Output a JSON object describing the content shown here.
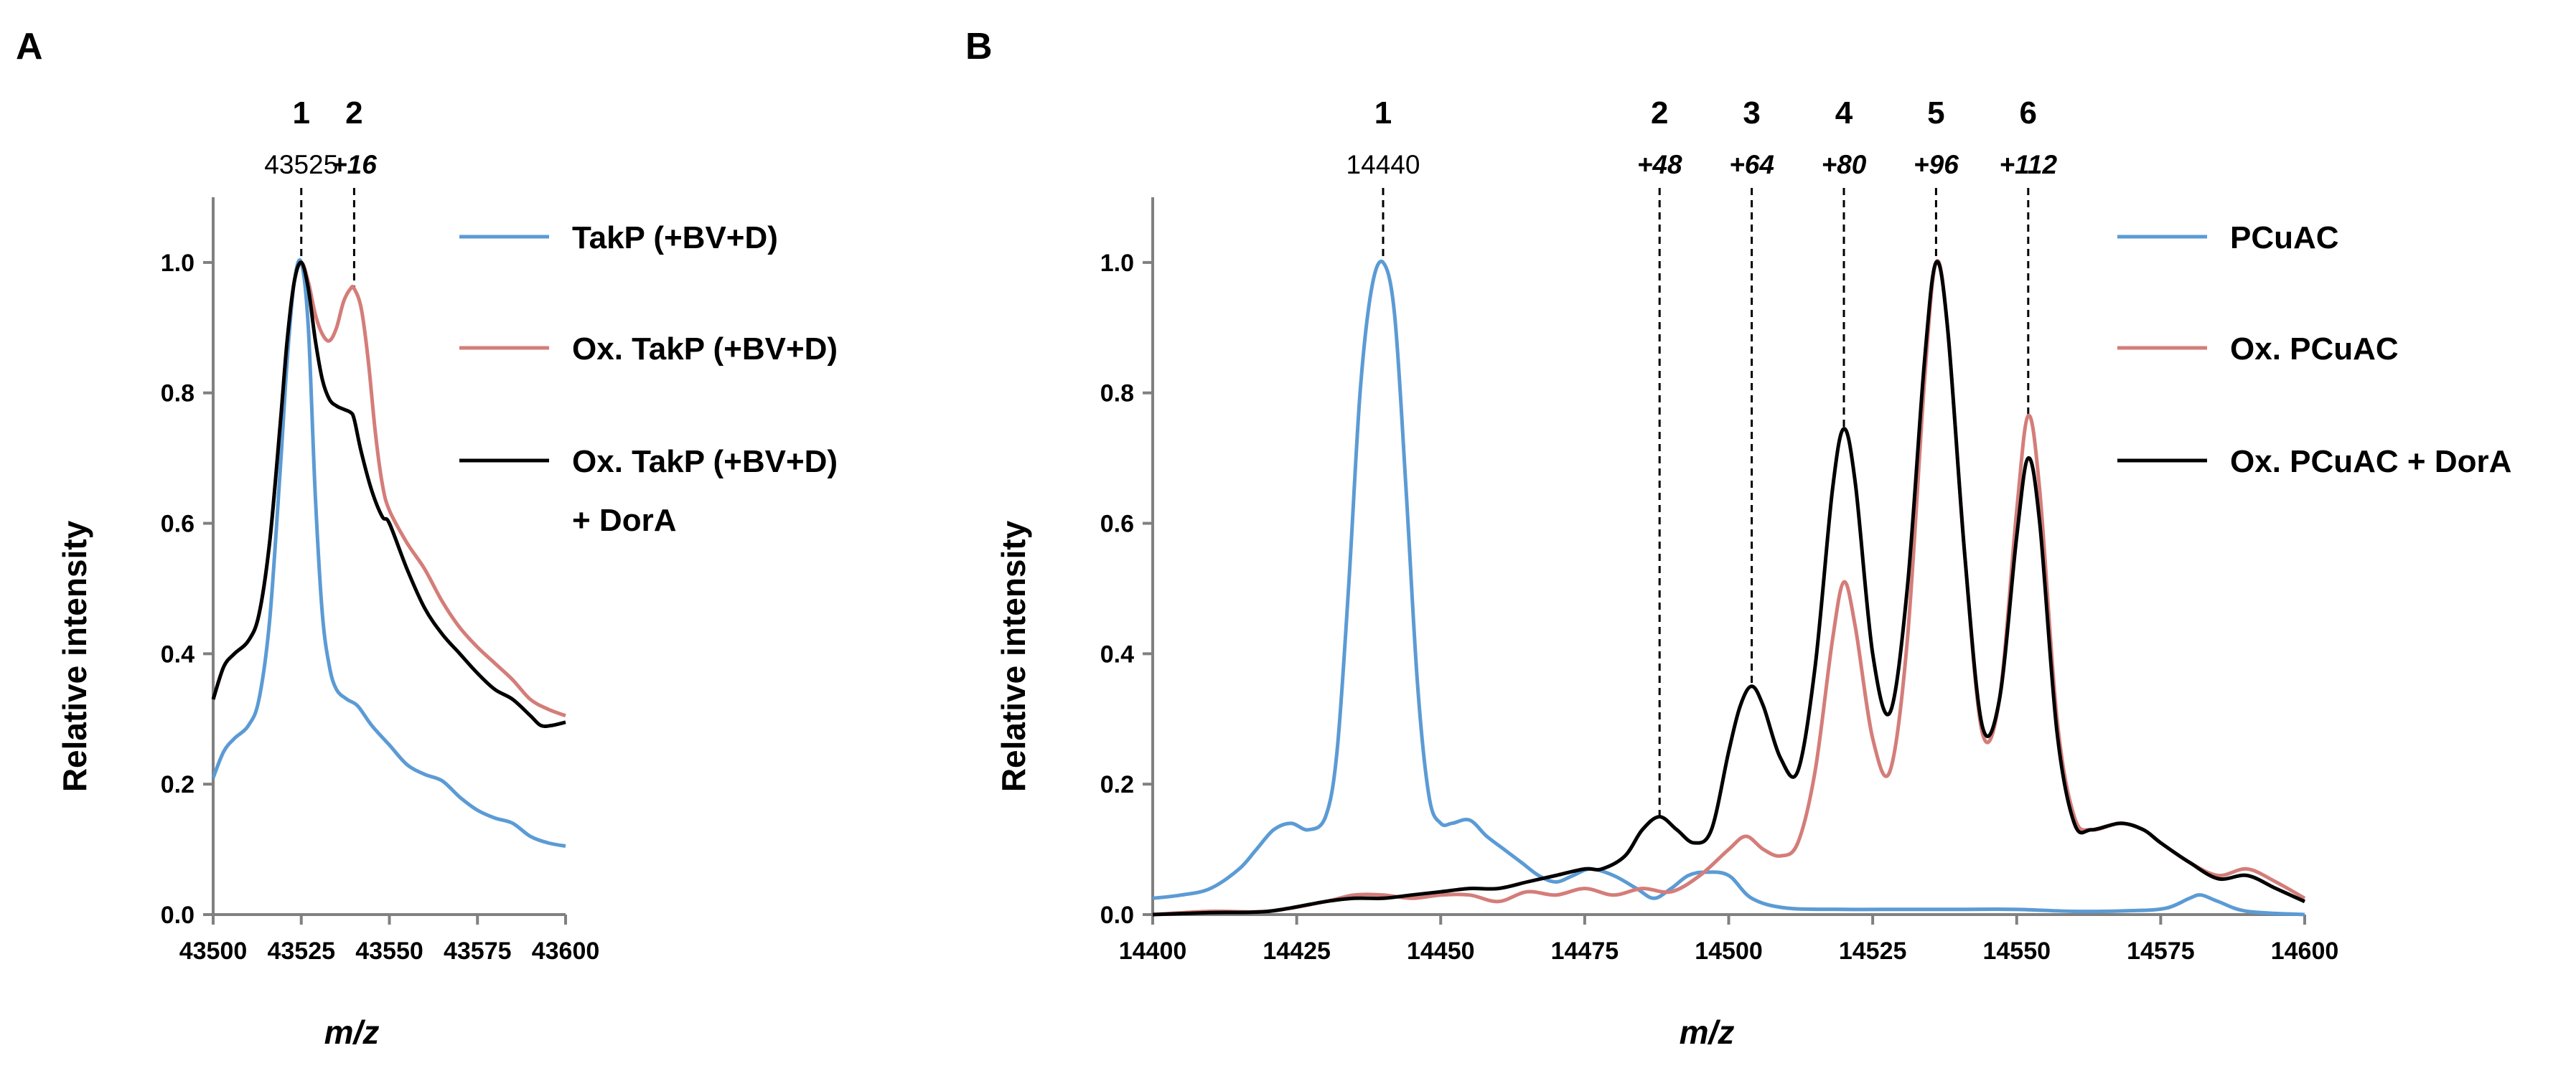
{
  "chart_data": [
    {
      "panel": "A",
      "type": "line",
      "xlabel": "m/z",
      "ylabel": "Relative intensity",
      "xlim": [
        43500,
        43600
      ],
      "ylim": [
        0,
        1.1
      ],
      "xticks": [
        43500,
        43525,
        43550,
        43575,
        43600
      ],
      "yticks": [
        "0.0",
        "0.2",
        "0.4",
        "0.6",
        "0.8",
        "1.0"
      ],
      "peaks": [
        {
          "num": "1",
          "mass": "43525",
          "x": 43525,
          "italic": false,
          "top": 1.0
        },
        {
          "num": "2",
          "mass": "+16",
          "x": 43540,
          "italic": true,
          "top": 0.96
        }
      ],
      "series": [
        {
          "name": "TakP (+BV+D)",
          "color": "#5B9BD5",
          "x": [
            43500,
            43503,
            43506,
            43510,
            43513,
            43516,
            43519,
            43521,
            43523,
            43525,
            43527,
            43529,
            43531,
            43533,
            43535,
            43538,
            43541,
            43545,
            43550,
            43555,
            43560,
            43565,
            43570,
            43575,
            43580,
            43585,
            43590,
            43595,
            43600
          ],
          "y": [
            0.21,
            0.25,
            0.27,
            0.29,
            0.33,
            0.45,
            0.68,
            0.85,
            0.97,
            1.0,
            0.9,
            0.64,
            0.46,
            0.38,
            0.345,
            0.33,
            0.32,
            0.29,
            0.26,
            0.23,
            0.215,
            0.205,
            0.18,
            0.16,
            0.148,
            0.14,
            0.12,
            0.11,
            0.105
          ]
        },
        {
          "name": "Ox. TakP (+BV+D)",
          "color": "#D47D79",
          "x": [
            43500,
            43503,
            43506,
            43510,
            43513,
            43516,
            43519,
            43521,
            43523,
            43525,
            43527,
            43529,
            43531,
            43533,
            43535,
            43537,
            43539,
            43540,
            43542,
            43544,
            43546,
            43548,
            43550,
            43555,
            43560,
            43565,
            43570,
            43575,
            43580,
            43585,
            43590,
            43595,
            43600
          ],
          "y": [
            0.33,
            0.38,
            0.4,
            0.42,
            0.46,
            0.57,
            0.75,
            0.88,
            0.97,
            1.0,
            0.97,
            0.92,
            0.89,
            0.88,
            0.9,
            0.94,
            0.96,
            0.96,
            0.93,
            0.85,
            0.74,
            0.66,
            0.62,
            0.57,
            0.53,
            0.48,
            0.44,
            0.41,
            0.385,
            0.36,
            0.33,
            0.315,
            0.305
          ]
        },
        {
          "name": "Ox. TakP (+BV+D) + DorA",
          "color": "#000000",
          "x": [
            43500,
            43503,
            43506,
            43510,
            43513,
            43516,
            43519,
            43521,
            43523,
            43525,
            43527,
            43529,
            43531,
            43533,
            43535,
            43537,
            43539,
            43540,
            43542,
            43545,
            43548,
            43550,
            43555,
            43560,
            43565,
            43570,
            43575,
            43580,
            43585,
            43590,
            43593,
            43596,
            43600
          ],
          "y": [
            0.33,
            0.38,
            0.4,
            0.42,
            0.46,
            0.57,
            0.75,
            0.88,
            0.97,
            1.0,
            0.96,
            0.88,
            0.82,
            0.79,
            0.78,
            0.775,
            0.77,
            0.76,
            0.71,
            0.65,
            0.61,
            0.6,
            0.53,
            0.47,
            0.43,
            0.4,
            0.37,
            0.345,
            0.33,
            0.305,
            0.29,
            0.29,
            0.295
          ]
        }
      ]
    },
    {
      "panel": "B",
      "type": "line",
      "xlabel": "m/z",
      "ylabel": "Relative intensity",
      "xlim": [
        14400,
        14600
      ],
      "ylim": [
        0,
        1.1
      ],
      "xticks": [
        14400,
        14425,
        14450,
        14475,
        14500,
        14525,
        14550,
        14575,
        14600
      ],
      "yticks": [
        "0.0",
        "0.2",
        "0.4",
        "0.6",
        "0.8",
        "1.0"
      ],
      "peaks": [
        {
          "num": "1",
          "mass": "14440",
          "x": 14440,
          "italic": false,
          "top": 1.0
        },
        {
          "num": "2",
          "mass": "+48",
          "x": 14488,
          "italic": true,
          "top": 0.15
        },
        {
          "num": "3",
          "mass": "+64",
          "x": 14504,
          "italic": true,
          "top": 0.35
        },
        {
          "num": "4",
          "mass": "+80",
          "x": 14520,
          "italic": true,
          "top": 0.745
        },
        {
          "num": "5",
          "mass": "+96",
          "x": 14536,
          "italic": true,
          "top": 1.0
        },
        {
          "num": "6",
          "mass": "+112",
          "x": 14552,
          "italic": true,
          "top": 0.765
        }
      ],
      "series": [
        {
          "name": "PCuAC",
          "color": "#5B9BD5",
          "x": [
            14400,
            14405,
            14410,
            14415,
            14418,
            14421,
            14424,
            14427,
            14430,
            14432,
            14434,
            14436,
            14438,
            14440,
            14442,
            14444,
            14446,
            14448,
            14450,
            14452,
            14455,
            14458,
            14461,
            14464,
            14467,
            14470,
            14473,
            14476,
            14480,
            14484,
            14487,
            14490,
            14493,
            14496,
            14500,
            14504,
            14510,
            14520,
            14530,
            14540,
            14550,
            14560,
            14570,
            14576,
            14580,
            14582,
            14585,
            14590,
            14600
          ],
          "y": [
            0.025,
            0.03,
            0.04,
            0.07,
            0.1,
            0.13,
            0.14,
            0.13,
            0.15,
            0.25,
            0.5,
            0.8,
            0.96,
            1.0,
            0.92,
            0.65,
            0.35,
            0.18,
            0.14,
            0.14,
            0.145,
            0.12,
            0.1,
            0.08,
            0.06,
            0.05,
            0.06,
            0.07,
            0.06,
            0.04,
            0.025,
            0.04,
            0.06,
            0.065,
            0.06,
            0.025,
            0.01,
            0.008,
            0.008,
            0.008,
            0.008,
            0.005,
            0.006,
            0.01,
            0.025,
            0.03,
            0.02,
            0.005,
            0.0
          ]
        },
        {
          "name": "Ox. PCuAC",
          "color": "#D47D79",
          "x": [
            14400,
            14410,
            14420,
            14430,
            14435,
            14440,
            14445,
            14450,
            14455,
            14460,
            14465,
            14470,
            14475,
            14480,
            14485,
            14490,
            14495,
            14500,
            14503,
            14506,
            14509,
            14512,
            14515,
            14518,
            14520,
            14522,
            14525,
            14528,
            14531,
            14534,
            14536,
            14538,
            14541,
            14544,
            14547,
            14550,
            14552,
            14554,
            14557,
            14560,
            14563,
            14568,
            14572,
            14575,
            14580,
            14585,
            14590,
            14595,
            14600
          ],
          "y": [
            0.0,
            0.005,
            0.005,
            0.02,
            0.03,
            0.03,
            0.025,
            0.03,
            0.03,
            0.02,
            0.035,
            0.03,
            0.04,
            0.03,
            0.04,
            0.035,
            0.06,
            0.1,
            0.12,
            0.1,
            0.09,
            0.11,
            0.22,
            0.42,
            0.51,
            0.44,
            0.27,
            0.22,
            0.42,
            0.82,
            1.0,
            0.9,
            0.55,
            0.28,
            0.33,
            0.62,
            0.765,
            0.65,
            0.3,
            0.15,
            0.13,
            0.14,
            0.13,
            0.11,
            0.08,
            0.06,
            0.07,
            0.05,
            0.025
          ]
        },
        {
          "name": "Ox. PCuAC + DorA",
          "color": "#000000",
          "x": [
            14400,
            14410,
            14420,
            14430,
            14435,
            14440,
            14445,
            14450,
            14455,
            14460,
            14465,
            14470,
            14475,
            14478,
            14482,
            14485,
            14488,
            14491,
            14494,
            14497,
            14500,
            14502,
            14504,
            14506,
            14509,
            14512,
            14515,
            14518,
            14520,
            14522,
            14525,
            14528,
            14531,
            14534,
            14536,
            14538,
            14541,
            14544,
            14547,
            14550,
            14552,
            14554,
            14557,
            14560,
            14563,
            14568,
            14572,
            14575,
            14580,
            14585,
            14590,
            14595,
            14600
          ],
          "y": [
            0.0,
            0.003,
            0.005,
            0.02,
            0.025,
            0.025,
            0.03,
            0.035,
            0.04,
            0.04,
            0.05,
            0.06,
            0.07,
            0.07,
            0.09,
            0.13,
            0.15,
            0.13,
            0.11,
            0.13,
            0.25,
            0.32,
            0.35,
            0.32,
            0.24,
            0.22,
            0.38,
            0.65,
            0.745,
            0.66,
            0.4,
            0.31,
            0.5,
            0.85,
            1.0,
            0.9,
            0.55,
            0.29,
            0.33,
            0.58,
            0.7,
            0.6,
            0.28,
            0.14,
            0.13,
            0.14,
            0.13,
            0.11,
            0.08,
            0.055,
            0.06,
            0.04,
            0.02
          ]
        }
      ]
    }
  ]
}
